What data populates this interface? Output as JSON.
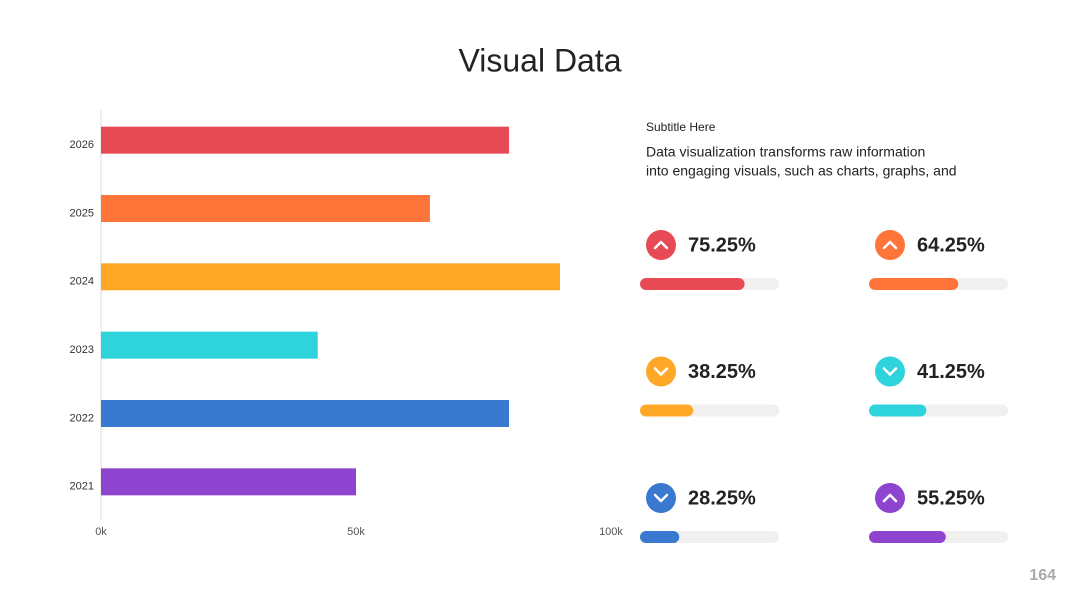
{
  "chart_data": {
    "type": "hbar",
    "title": "Visual Data",
    "categories": [
      "2026",
      "2025",
      "2024",
      "2023",
      "2022",
      "2021"
    ],
    "values": [
      80000,
      64500,
      90000,
      42500,
      80000,
      50000
    ],
    "colors": [
      "#e84a55",
      "#ff7539",
      "#ffa726",
      "#2ed3dc",
      "#3a79d0",
      "#8e44cf"
    ],
    "xlim": [
      0,
      100000
    ],
    "xticks": [
      {
        "value": 0,
        "label": "0k"
      },
      {
        "value": 50000,
        "label": "50k"
      },
      {
        "value": 100000,
        "label": "100k"
      }
    ],
    "grid": false
  },
  "panel": {
    "subtitle": "Subtitle Here",
    "text_lines": [
      "Data visualization transforms raw information",
      "into engaging visuals, such as charts, graphs, and"
    ],
    "kpis": {
      "values": [
        75.25,
        64.25,
        38.25,
        41.25,
        28.25,
        55.25
      ],
      "value_labels": [
        "75.25%",
        "64.25%",
        "38.25%",
        "41.25%",
        "28.25%",
        "55.25%"
      ],
      "directions": [
        "up",
        "up",
        "down",
        "down",
        "down",
        "up"
      ],
      "colors": [
        "#e84a55",
        "#ff7539",
        "#ffa726",
        "#2ed3dc",
        "#3a79d0",
        "#8e44cf"
      ],
      "max": 100
    }
  },
  "page_number": "164"
}
